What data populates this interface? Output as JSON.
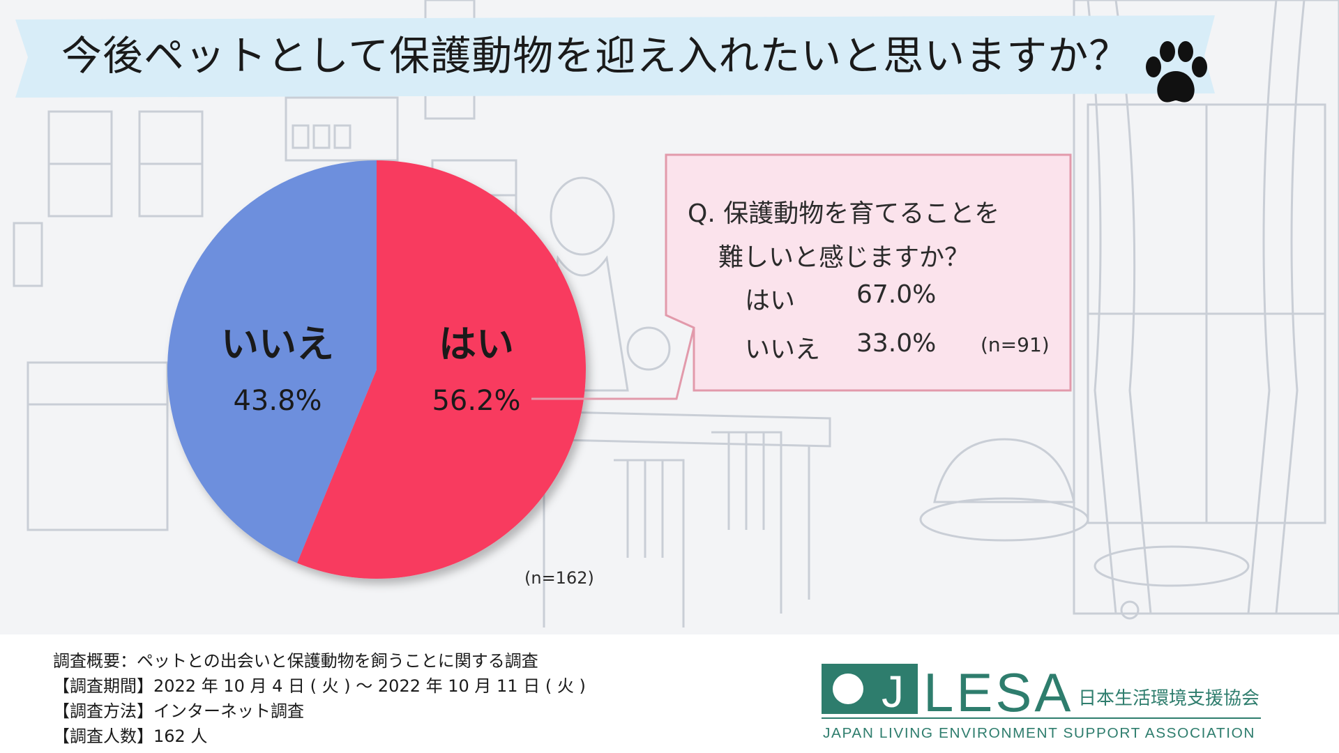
{
  "title": "今後ペットとして保護動物を迎え入れたいと思いますか？",
  "colors": {
    "yes": "#f83a5f",
    "no": "#6d8fdd",
    "banner": "#d8edf8",
    "callout_bg": "#fbe3ec",
    "callout_border": "#e29aab",
    "logo": "#2e7d6d"
  },
  "chart_data": {
    "type": "pie",
    "slices": [
      {
        "label": "はい",
        "value": 56.2,
        "value_label": "56.2%"
      },
      {
        "label": "いいえ",
        "value": 43.8,
        "value_label": "43.8%"
      }
    ],
    "note": "(n=162)"
  },
  "callout": {
    "question_line1": "Q. 保護動物を育てることを",
    "question_line2": "難しいと感じますか？",
    "rows": [
      {
        "label": "はい",
        "value": "67.0%"
      },
      {
        "label": "いいえ",
        "value": "33.0%"
      }
    ],
    "n": "(n=91)"
  },
  "survey": {
    "overview": "調査概要：ペットとの出会いと保護動物を飼うことに関する調査",
    "period": "【調査期間】2022 年 10 月 4 日 ( 火 ) ～ 2022 年 10 月 11 日 ( 火 )",
    "method": "【調査方法】インターネット調査",
    "count": "【調査人数】162 人"
  },
  "logo": {
    "letter": "J",
    "name": "LESA",
    "japanese": "日本生活環境支援協会",
    "english": "JAPAN LIVING ENVIRONMENT SUPPORT ASSOCIATION"
  }
}
